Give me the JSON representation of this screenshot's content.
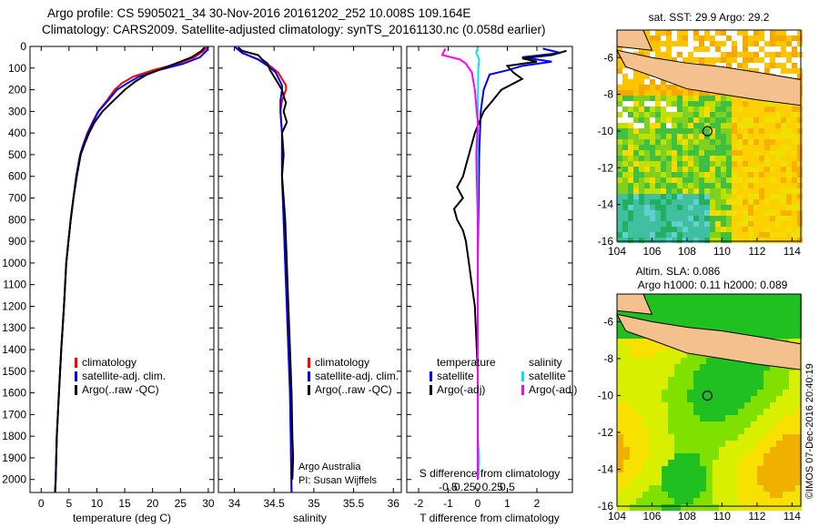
{
  "header": {
    "line1": "Argo profile: CS 5905021_34 30-Nov-2016 20161202_252 10.008S 109.164E",
    "line2": "Climatology: CARS2009. Satellite-adjusted climatology: synTS_20161130.nc (0.058d earlier)"
  },
  "credit": "©IMOS 07-Dec-2016 20:40:19",
  "colors": {
    "climatology": "#ff0000",
    "satellite": "#0000ff",
    "argo": "#000000",
    "sal_satellite": "#00e5e5",
    "sal_argo": "#ff00ff",
    "land": "#f4c08e"
  },
  "chart_data": [
    {
      "type": "line",
      "panel": "temperature",
      "xlabel": "temperature (deg C)",
      "ylabel": "",
      "xlim": [
        -2,
        31
      ],
      "ylim": [
        2060,
        0
      ],
      "xticks": [
        0,
        5,
        10,
        15,
        20,
        25,
        30
      ],
      "yticks": [
        0,
        100,
        200,
        300,
        400,
        500,
        600,
        700,
        800,
        900,
        1000,
        1100,
        1200,
        1300,
        1400,
        1500,
        1600,
        1700,
        1800,
        1900,
        2000
      ],
      "legend": [
        "climatology",
        "satellite-adj. clim.",
        "Argo(..raw -QC)"
      ],
      "series": [
        {
          "name": "climatology",
          "color": "#ff0000",
          "points": [
            [
              29.6,
              0
            ],
            [
              29.2,
              20
            ],
            [
              27.5,
              50
            ],
            [
              24.5,
              80
            ],
            [
              20,
              110
            ],
            [
              16.5,
              140
            ],
            [
              14.5,
              170
            ],
            [
              13.2,
              200
            ],
            [
              11.8,
              250
            ],
            [
              10.2,
              300
            ],
            [
              9.2,
              350
            ],
            [
              8.3,
              400
            ],
            [
              7.6,
              450
            ],
            [
              7,
              500
            ],
            [
              6.3,
              600
            ],
            [
              5.8,
              700
            ],
            [
              5.3,
              800
            ],
            [
              4.9,
              900
            ],
            [
              4.5,
              1000
            ],
            [
              4.1,
              1200
            ],
            [
              3.6,
              1400
            ],
            [
              3.2,
              1600
            ],
            [
              2.8,
              1800
            ],
            [
              2.6,
              2000
            ],
            [
              2.5,
              2060
            ]
          ]
        },
        {
          "name": "satellite-adj. clim.",
          "color": "#0000ff",
          "points": [
            [
              29.9,
              0
            ],
            [
              29.7,
              20
            ],
            [
              28.5,
              50
            ],
            [
              25.5,
              80
            ],
            [
              21,
              110
            ],
            [
              17.5,
              140
            ],
            [
              15.5,
              170
            ],
            [
              13.6,
              200
            ],
            [
              12,
              250
            ],
            [
              10.3,
              300
            ],
            [
              9.3,
              350
            ],
            [
              8.4,
              400
            ],
            [
              7.6,
              450
            ],
            [
              7,
              500
            ],
            [
              6.3,
              600
            ],
            [
              5.8,
              700
            ],
            [
              5.3,
              800
            ],
            [
              4.9,
              900
            ],
            [
              4.5,
              1000
            ],
            [
              4.1,
              1200
            ],
            [
              3.6,
              1400
            ],
            [
              3.2,
              1600
            ],
            [
              2.8,
              1800
            ],
            [
              2.6,
              2000
            ],
            [
              2.5,
              2060
            ]
          ]
        },
        {
          "name": "Argo(..raw -QC)",
          "color": "#000000",
          "points": [
            [
              29.3,
              5
            ],
            [
              28.8,
              20
            ],
            [
              27,
              50
            ],
            [
              25,
              70
            ],
            [
              22,
              100
            ],
            [
              19,
              130
            ],
            [
              17,
              160
            ],
            [
              15,
              200
            ],
            [
              13,
              250
            ],
            [
              11,
              300
            ],
            [
              9.6,
              350
            ],
            [
              8.6,
              400
            ],
            [
              7.8,
              450
            ],
            [
              7.1,
              500
            ],
            [
              6.4,
              600
            ],
            [
              5.8,
              700
            ],
            [
              5.3,
              800
            ],
            [
              4.9,
              900
            ],
            [
              4.5,
              1000
            ],
            [
              4.1,
              1200
            ],
            [
              3.6,
              1400
            ],
            [
              3.2,
              1600
            ],
            [
              2.8,
              1800
            ],
            [
              2.6,
              2000
            ],
            [
              2.5,
              2060
            ]
          ]
        }
      ]
    },
    {
      "type": "line",
      "panel": "salinity",
      "xlabel": "salinity",
      "xlim": [
        33.8,
        36.1
      ],
      "ylim": [
        2060,
        0
      ],
      "xticks": [
        34,
        34.5,
        35,
        35.5,
        36
      ],
      "xtick_labels": [
        "34",
        "34.5",
        "35",
        "35.5",
        "36"
      ],
      "legend": [
        "climatology",
        "satellite-adj. clim.",
        "Argo(..raw -QC)"
      ],
      "annotations": [
        "Argo Australia",
        "PI: Susan Wijffels"
      ],
      "series": [
        {
          "name": "climatology",
          "color": "#ff0000",
          "points": [
            [
              34.0,
              0
            ],
            [
              34.1,
              30
            ],
            [
              34.3,
              60
            ],
            [
              34.45,
              90
            ],
            [
              34.55,
              120
            ],
            [
              34.6,
              150
            ],
            [
              34.65,
              180
            ],
            [
              34.65,
              200
            ],
            [
              34.6,
              250
            ],
            [
              34.58,
              300
            ],
            [
              34.6,
              400
            ],
            [
              34.6,
              600
            ],
            [
              34.62,
              800
            ],
            [
              34.64,
              1000
            ],
            [
              34.66,
              1200
            ],
            [
              34.68,
              1400
            ],
            [
              34.7,
              1600
            ],
            [
              34.71,
              1800
            ],
            [
              34.72,
              2060
            ]
          ]
        },
        {
          "name": "satellite-adj. clim.",
          "color": "#0000ff",
          "points": [
            [
              34.0,
              0
            ],
            [
              34.1,
              30
            ],
            [
              34.3,
              60
            ],
            [
              34.42,
              90
            ],
            [
              34.52,
              120
            ],
            [
              34.56,
              150
            ],
            [
              34.6,
              180
            ],
            [
              34.6,
              200
            ],
            [
              34.58,
              250
            ],
            [
              34.58,
              300
            ],
            [
              34.6,
              400
            ],
            [
              34.6,
              600
            ],
            [
              34.62,
              800
            ],
            [
              34.64,
              1000
            ],
            [
              34.66,
              1200
            ],
            [
              34.68,
              1400
            ],
            [
              34.7,
              1600
            ],
            [
              34.71,
              1800
            ],
            [
              34.72,
              2060
            ]
          ]
        },
        {
          "name": "Argo(..raw -QC)",
          "color": "#000000",
          "points": [
            [
              34.05,
              5
            ],
            [
              34.1,
              20
            ],
            [
              34.3,
              40
            ],
            [
              34.35,
              60
            ],
            [
              34.42,
              80
            ],
            [
              34.45,
              110
            ],
            [
              34.5,
              140
            ],
            [
              34.55,
              170
            ],
            [
              34.6,
              200
            ],
            [
              34.62,
              230
            ],
            [
              34.65,
              260
            ],
            [
              34.62,
              300
            ],
            [
              34.66,
              350
            ],
            [
              34.6,
              400
            ],
            [
              34.62,
              500
            ],
            [
              34.6,
              600
            ],
            [
              34.62,
              700
            ],
            [
              34.64,
              800
            ],
            [
              34.66,
              1000
            ],
            [
              34.68,
              1200
            ],
            [
              34.7,
              1400
            ],
            [
              34.72,
              1600
            ],
            [
              34.73,
              1800
            ],
            [
              34.74,
              1900
            ],
            [
              34.73,
              2000
            ]
          ]
        }
      ]
    },
    {
      "type": "line",
      "panel": "difference",
      "xlabel": "T difference from climatology",
      "xlabel_top": "S difference from climatology",
      "xlim": [
        -2.4,
        3.2
      ],
      "ylim": [
        2060,
        0
      ],
      "xticks": [
        -2,
        -1,
        0,
        1,
        2
      ],
      "top_ticks": [
        "-0.5",
        "-0.25",
        "0",
        "0.25",
        "0.5"
      ],
      "legend_temperature_title": "temperature",
      "legend_salinity_title": "salinity",
      "legend": [
        "satellite",
        "Argo(-adj)",
        "satellite",
        "Argo(-adj)"
      ],
      "series": [
        {
          "name": "satellite",
          "color": "#0000ff",
          "kind": "T",
          "points": [
            [
              2.2,
              10
            ],
            [
              2.8,
              30
            ],
            [
              1.5,
              50
            ],
            [
              2.5,
              70
            ],
            [
              1.5,
              90
            ],
            [
              1.0,
              110
            ],
            [
              0.4,
              130
            ],
            [
              0.2,
              200
            ],
            [
              0.1,
              300
            ],
            [
              0.05,
              500
            ],
            [
              0,
              1000
            ],
            [
              0,
              2000
            ]
          ]
        },
        {
          "name": "Argo(-adj)",
          "color": "#000000",
          "kind": "T",
          "points": [
            [
              3.0,
              20
            ],
            [
              2.5,
              40
            ],
            [
              1.5,
              55
            ],
            [
              2.0,
              70
            ],
            [
              1.0,
              90
            ],
            [
              1.2,
              120
            ],
            [
              1.5,
              150
            ],
            [
              0.8,
              200
            ],
            [
              0.5,
              250
            ],
            [
              0.2,
              300
            ],
            [
              -0.1,
              400
            ],
            [
              -0.3,
              500
            ],
            [
              -0.4,
              550
            ],
            [
              -0.5,
              600
            ],
            [
              -0.7,
              650
            ],
            [
              -0.5,
              700
            ],
            [
              -0.8,
              750
            ],
            [
              -0.7,
              800
            ],
            [
              -0.5,
              850
            ],
            [
              -0.4,
              900
            ],
            [
              -0.3,
              1000
            ],
            [
              -0.2,
              1100
            ],
            [
              -0.1,
              1200
            ],
            [
              0,
              1500
            ],
            [
              0,
              2000
            ]
          ]
        },
        {
          "name": "satellite",
          "color": "#00e5e5",
          "kind": "S",
          "points": [
            [
              0.0,
              5
            ],
            [
              -0.05,
              30
            ],
            [
              0.05,
              60
            ],
            [
              0.02,
              100
            ],
            [
              0,
              300
            ],
            [
              0,
              1000
            ],
            [
              0,
              1800
            ],
            [
              0.05,
              1900
            ],
            [
              0.02,
              2000
            ]
          ]
        },
        {
          "name": "Argo(-adj)",
          "color": "#ff00ff",
          "kind": "S",
          "points": [
            [
              -1.1,
              10
            ],
            [
              -1.2,
              40
            ],
            [
              -0.6,
              60
            ],
            [
              -0.4,
              80
            ],
            [
              -0.2,
              120
            ],
            [
              -0.1,
              200
            ],
            [
              0,
              350
            ],
            [
              -0.05,
              500
            ],
            [
              0,
              800
            ],
            [
              0,
              1500
            ],
            [
              0,
              2000
            ]
          ]
        }
      ]
    },
    {
      "type": "heatmap",
      "panel": "sst_map",
      "title": "sat. SST: 29.9 Argo: 29.2",
      "xlim": [
        104,
        114.5
      ],
      "ylim": [
        -16,
        -4.5
      ],
      "xticks": [
        104,
        106,
        108,
        110,
        112,
        114
      ],
      "yticks": [
        -6,
        -8,
        -10,
        -12,
        -14,
        -16
      ],
      "argo_location": [
        109.164,
        -10.008
      ]
    },
    {
      "type": "heatmap",
      "panel": "sla_map",
      "title_line1": "Altim. SLA: 0.086",
      "title_line2": "Argo h1000: 0.11 h2000: 0.089",
      "xlim": [
        104,
        114.5
      ],
      "ylim": [
        -16,
        -4.5
      ],
      "xticks": [
        104,
        106,
        108,
        110,
        112,
        114
      ],
      "yticks": [
        -6,
        -8,
        -10,
        -12,
        -14,
        -16
      ],
      "argo_location": [
        109.164,
        -10.008
      ]
    }
  ]
}
